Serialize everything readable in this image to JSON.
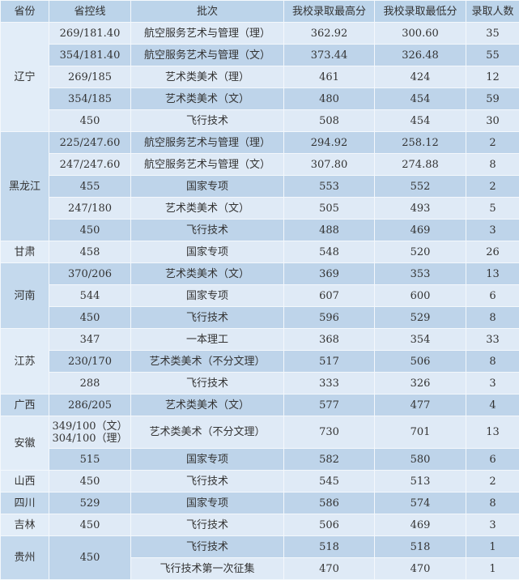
{
  "headers": [
    "省份",
    "省控线",
    "批次",
    "我校录取最高分",
    "我校录取最低分",
    "录取人数"
  ],
  "colors": {
    "header": "#bcd4ea",
    "row_light": "#dfeaf6",
    "row_dark": "#bed4ea"
  },
  "groups": [
    {
      "province": "辽宁",
      "rows": [
        {
          "line": "269/181.40",
          "batch": "航空服务艺术与管理（理）",
          "max": "362.92",
          "min": "300.60",
          "count": "35"
        },
        {
          "line": "354/181.40",
          "batch": "航空服务艺术与管理（文）",
          "max": "373.44",
          "min": "326.48",
          "count": "55"
        },
        {
          "line": "269/185",
          "batch": "艺术类美术（理）",
          "max": "461",
          "min": "424",
          "count": "12"
        },
        {
          "line": "354/185",
          "batch": "艺术类美术（文）",
          "max": "480",
          "min": "454",
          "count": "59"
        },
        {
          "line": "450",
          "batch": "飞行技术",
          "max": "508",
          "min": "454",
          "count": "30"
        }
      ]
    },
    {
      "province": "黑龙江",
      "rows": [
        {
          "line": "225/247.60",
          "batch": "航空服务艺术与管理（理）",
          "max": "294.92",
          "min": "258.12",
          "count": "2"
        },
        {
          "line": "247/247.60",
          "batch": "航空服务艺术与管理（文）",
          "max": "307.80",
          "min": "274.88",
          "count": "8"
        },
        {
          "line": "455",
          "batch": "国家专项",
          "max": "553",
          "min": "552",
          "count": "2"
        },
        {
          "line": "247/180",
          "batch": "艺术类美术（文）",
          "max": "505",
          "min": "493",
          "count": "5"
        },
        {
          "line": "450",
          "batch": "飞行技术",
          "max": "488",
          "min": "469",
          "count": "3"
        }
      ]
    },
    {
      "province": "甘肃",
      "rows": [
        {
          "line": "458",
          "batch": "国家专项",
          "max": "548",
          "min": "520",
          "count": "26"
        }
      ]
    },
    {
      "province": "河南",
      "rows": [
        {
          "line": "370/206",
          "batch": "艺术类美术（文）",
          "max": "369",
          "min": "353",
          "count": "13"
        },
        {
          "line": "544",
          "batch": "国家专项",
          "max": "607",
          "min": "600",
          "count": "6"
        },
        {
          "line": "450",
          "batch": "飞行技术",
          "max": "596",
          "min": "529",
          "count": "8"
        }
      ]
    },
    {
      "province": "江苏",
      "rows": [
        {
          "line": "347",
          "batch": "一本理工",
          "max": "368",
          "min": "354",
          "count": "33"
        },
        {
          "line": "230/170",
          "batch": "艺术类美术（不分文理）",
          "max": "517",
          "min": "506",
          "count": "8"
        },
        {
          "line": "288",
          "batch": "飞行技术",
          "max": "333",
          "min": "326",
          "count": "3"
        }
      ]
    },
    {
      "province": "广西",
      "rows": [
        {
          "line": "286/205",
          "batch": "艺术类美术（文）",
          "max": "577",
          "min": "477",
          "count": "4"
        }
      ]
    },
    {
      "province": "安徽",
      "rows": [
        {
          "line": "349/100（文）",
          "line2": "304/100（理）",
          "batch": "艺术类美术（不分文理）",
          "max": "730",
          "min": "701",
          "count": "13"
        },
        {
          "line": "515",
          "batch": "国家专项",
          "max": "582",
          "min": "580",
          "count": "6"
        }
      ]
    },
    {
      "province": "山西",
      "rows": [
        {
          "line": "450",
          "batch": "飞行技术",
          "max": "545",
          "min": "513",
          "count": "2"
        }
      ]
    },
    {
      "province": "四川",
      "rows": [
        {
          "line": "529",
          "batch": "国家专项",
          "max": "586",
          "min": "574",
          "count": "8"
        }
      ]
    },
    {
      "province": "吉林",
      "rows": [
        {
          "line": "450",
          "batch": "飞行技术",
          "max": "506",
          "min": "469",
          "count": "3"
        }
      ]
    },
    {
      "province": "贵州",
      "shared_line": "450",
      "rows": [
        {
          "batch": "飞行技术",
          "max": "518",
          "min": "518",
          "count": "1"
        },
        {
          "batch": "飞行技术第一次征集",
          "max": "470",
          "min": "470",
          "count": "1"
        }
      ]
    }
  ]
}
